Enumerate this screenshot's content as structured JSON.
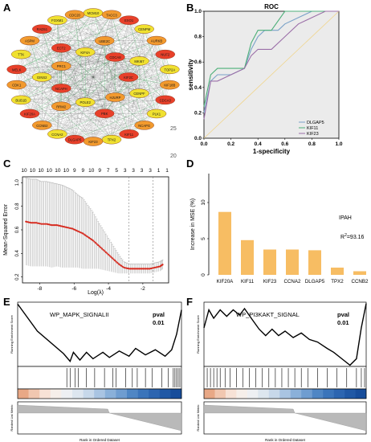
{
  "panels": {
    "A": {
      "letter": "A",
      "nodes_labels": [
        "MCM10",
        "TACC3",
        "EXO1",
        "CENPM",
        "AURKB",
        "NUF2",
        "TOP2A",
        "KIF18B",
        "CDCA3",
        "PLK1",
        "NCAPG",
        "KIF11",
        "TPX2",
        "KIF23",
        "DLGAP5",
        "CCNA2",
        "CCNB2",
        "KIF20A",
        "BUB1B",
        "CDK1",
        "MELK",
        "TTK",
        "ASPM",
        "RAD51",
        "FOXM1",
        "CDC20",
        "KIF2C",
        "CENPF",
        "HJURP",
        "PBK",
        "POLE2",
        "RRM2",
        "NCAPH",
        "GINS2",
        "PRC1",
        "ECT2",
        "KIF4A",
        "UBE2C",
        "CDCA8",
        "MKI67"
      ],
      "stray_labels": [
        "25",
        "20"
      ]
    },
    "B": {
      "letter": "B",
      "title": "ROC",
      "xlabel": "1-specificity",
      "ylabel": "sensitivity",
      "xticks": [
        "0.0",
        "0.2",
        "0.4",
        "0.6",
        "0.8",
        "1.0"
      ],
      "yticks": [
        "0.0",
        "0.2",
        "0.4",
        "0.6",
        "0.8",
        "1.0"
      ],
      "legend": [
        {
          "name": "DLGAP5",
          "color": "#7aa2c8"
        },
        {
          "name": "KIF11",
          "color": "#4caf78"
        },
        {
          "name": "KIF23",
          "color": "#9b6fa8"
        }
      ]
    },
    "C": {
      "letter": "C",
      "ylabel": "Mean-Squared Error",
      "xlabel": "Log(λ)",
      "top_counts": [
        "10",
        "10",
        "10",
        "10",
        "10",
        "10",
        "9",
        "9",
        "10",
        "9",
        "7",
        "5",
        "3",
        "3",
        "3",
        "3",
        "1",
        "1"
      ],
      "xticks": [
        "-8",
        "-6",
        "-4",
        "-2"
      ],
      "yticks": [
        "0.2",
        "0.4",
        "0.6",
        "0.8",
        "1.0"
      ]
    },
    "D": {
      "letter": "D",
      "ylabel": "Increase in MSE (%)",
      "annotation": "IPAH",
      "r2_label": "R",
      "r2_sup": "2",
      "r2_value": "=93.16",
      "yticks": [
        "0",
        "5",
        "10"
      ]
    },
    "E": {
      "letter": "E",
      "title": "WP_MAPK_SIGNALII",
      "pval_label": "pval",
      "pval_value": "0.01",
      "ylabel_top": "Running Enrichment Score",
      "ylabel_bottom": "Ranked List Metric",
      "xlabel": "Rank in Ordered Dataset"
    },
    "F": {
      "letter": "F",
      "title": "WP_PI3KAKT_SIGNAL",
      "pval_label": "pval",
      "pval_value": "0.01",
      "ylabel_top": "Running Enrichment Score",
      "ylabel_bottom": "Ranked List Metric",
      "xlabel": "Rank in Ordered Dataset"
    }
  },
  "chart_data": [
    {
      "type": "line",
      "title": "ROC",
      "xlabel": "1-specificity",
      "ylabel": "sensitivity",
      "xlim": [
        0,
        1
      ],
      "ylim": [
        0,
        1
      ],
      "series": [
        {
          "name": "DLGAP5",
          "color": "#7aa2c8",
          "x": [
            0,
            0.05,
            0.1,
            0.2,
            0.3,
            0.35,
            0.4,
            0.45,
            0.55,
            0.6,
            0.7,
            0.8,
            0.9,
            1.0
          ],
          "y": [
            0.2,
            0.45,
            0.5,
            0.5,
            0.55,
            0.7,
            0.8,
            0.85,
            0.85,
            0.9,
            0.95,
            1.0,
            1.0,
            1.0
          ]
        },
        {
          "name": "KIF11",
          "color": "#4caf78",
          "x": [
            0,
            0.05,
            0.1,
            0.2,
            0.3,
            0.35,
            0.4,
            0.5,
            0.6,
            0.7,
            0.8,
            0.9,
            1.0
          ],
          "y": [
            0.25,
            0.5,
            0.55,
            0.55,
            0.55,
            0.75,
            0.85,
            0.85,
            1.0,
            1.0,
            1.0,
            1.0,
            1.0
          ]
        },
        {
          "name": "KIF23",
          "color": "#9b6fa8",
          "x": [
            0,
            0.05,
            0.1,
            0.2,
            0.3,
            0.35,
            0.4,
            0.5,
            0.6,
            0.7,
            0.8,
            0.9,
            1.0
          ],
          "y": [
            0.15,
            0.45,
            0.45,
            0.5,
            0.55,
            0.65,
            0.7,
            0.7,
            0.8,
            0.9,
            0.95,
            1.0,
            1.0
          ]
        }
      ]
    },
    {
      "type": "scatter",
      "xlabel": "Log(λ)",
      "ylabel": "Mean-Squared Error",
      "xlim": [
        -9,
        -0.5
      ],
      "ylim": [
        0.15,
        1.05
      ],
      "x": [
        -8.8,
        -8.5,
        -8.2,
        -7.9,
        -7.6,
        -7.3,
        -7.0,
        -6.7,
        -6.4,
        -6.1,
        -5.8,
        -5.5,
        -5.2,
        -4.9,
        -4.6,
        -4.3,
        -4.0,
        -3.7,
        -3.4,
        -3.1,
        -2.8,
        -2.5,
        -2.2,
        -1.9,
        -1.6,
        -1.3,
        -1.0,
        -0.8
      ],
      "y": [
        0.67,
        0.66,
        0.66,
        0.65,
        0.65,
        0.64,
        0.64,
        0.63,
        0.62,
        0.61,
        0.59,
        0.57,
        0.54,
        0.51,
        0.47,
        0.43,
        0.39,
        0.35,
        0.31,
        0.28,
        0.27,
        0.27,
        0.27,
        0.27,
        0.27,
        0.28,
        0.29,
        0.31
      ],
      "err": [
        0.37,
        0.37,
        0.37,
        0.36,
        0.36,
        0.36,
        0.35,
        0.35,
        0.34,
        0.33,
        0.31,
        0.3,
        0.27,
        0.24,
        0.2,
        0.17,
        0.14,
        0.11,
        0.08,
        0.05,
        0.04,
        0.04,
        0.04,
        0.04,
        0.04,
        0.04,
        0.04,
        0.04
      ],
      "vlines": [
        -2.8,
        -1.4
      ]
    },
    {
      "type": "bar",
      "ylabel": "Increase in MSE (%)",
      "categories": [
        "KIF20A",
        "KIF11",
        "KIF23",
        "CCNA2",
        "DLGAP5",
        "TPX2",
        "CCNB2"
      ],
      "values": [
        8.7,
        4.8,
        3.5,
        3.5,
        3.4,
        1.0,
        0.5
      ],
      "ylim": [
        0,
        14
      ],
      "color": "#f7bd63"
    }
  ]
}
